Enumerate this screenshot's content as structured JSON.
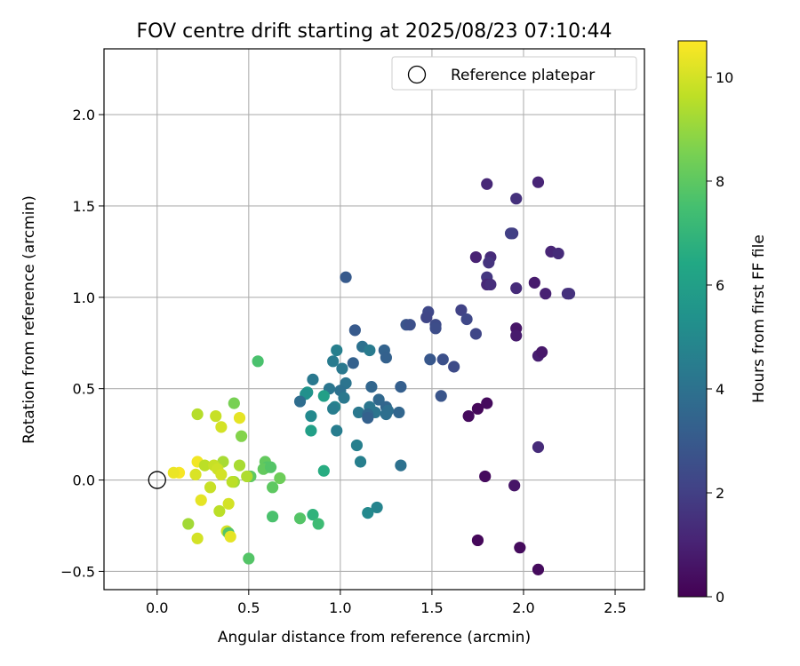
{
  "chart_data": {
    "type": "scatter",
    "title": "FOV centre drift starting at 2025/08/23 07:10:44",
    "xlabel": "Angular distance from reference (arcmin)",
    "ylabel": "Rotation from reference (arcmin)",
    "xlim": [
      -0.29,
      2.66
    ],
    "ylim": [
      -0.6,
      2.36
    ],
    "x_ticks": [
      0.0,
      0.5,
      1.0,
      1.5,
      2.0,
      2.5
    ],
    "x_tick_labels": [
      "0.0",
      "0.5",
      "1.0",
      "1.5",
      "2.0",
      "2.5"
    ],
    "y_ticks": [
      -0.5,
      0.0,
      0.5,
      1.0,
      1.5,
      2.0
    ],
    "y_tick_labels": [
      "−0.5",
      "0.0",
      "0.5",
      "1.0",
      "1.5",
      "2.0"
    ],
    "grid": true,
    "legend": {
      "position": "top-right",
      "entries": [
        "Reference platepar"
      ]
    },
    "reference_point": {
      "x": 0.0,
      "y": 0.0,
      "name": "Reference platepar"
    },
    "colorbar": {
      "label": "Hours from first FF file",
      "min": 0,
      "max": 10.7,
      "ticks": [
        0,
        2,
        4,
        6,
        8,
        10
      ],
      "tick_labels": [
        "0",
        "2",
        "4",
        "6",
        "8",
        "10"
      ],
      "colormap": "viridis"
    },
    "points": [
      {
        "x": 2.08,
        "y": 1.63,
        "c": 1.1
      },
      {
        "x": 1.8,
        "y": 1.62,
        "c": 1.2
      },
      {
        "x": 1.96,
        "y": 1.54,
        "c": 1.5
      },
      {
        "x": 1.94,
        "y": 1.35,
        "c": 1.9
      },
      {
        "x": 1.93,
        "y": 1.35,
        "c": 2.0
      },
      {
        "x": 2.15,
        "y": 1.25,
        "c": 1.1
      },
      {
        "x": 2.19,
        "y": 1.24,
        "c": 1.3
      },
      {
        "x": 1.74,
        "y": 1.22,
        "c": 1.0
      },
      {
        "x": 1.82,
        "y": 1.22,
        "c": 1.3
      },
      {
        "x": 1.81,
        "y": 1.19,
        "c": 1.6
      },
      {
        "x": 1.8,
        "y": 1.11,
        "c": 1.7
      },
      {
        "x": 1.8,
        "y": 1.07,
        "c": 1.2
      },
      {
        "x": 1.82,
        "y": 1.07,
        "c": 1.4
      },
      {
        "x": 1.96,
        "y": 1.05,
        "c": 1.3
      },
      {
        "x": 2.06,
        "y": 1.08,
        "c": 0.8
      },
      {
        "x": 2.12,
        "y": 1.02,
        "c": 1.0
      },
      {
        "x": 2.25,
        "y": 1.02,
        "c": 1.6
      },
      {
        "x": 2.24,
        "y": 1.02,
        "c": 1.5
      },
      {
        "x": 1.03,
        "y": 1.11,
        "c": 3.0
      },
      {
        "x": 1.48,
        "y": 0.92,
        "c": 2.3
      },
      {
        "x": 1.66,
        "y": 0.93,
        "c": 2.1
      },
      {
        "x": 1.47,
        "y": 0.89,
        "c": 2.2
      },
      {
        "x": 1.69,
        "y": 0.88,
        "c": 2.3
      },
      {
        "x": 1.36,
        "y": 0.85,
        "c": 2.8
      },
      {
        "x": 1.38,
        "y": 0.85,
        "c": 2.6
      },
      {
        "x": 1.52,
        "y": 0.85,
        "c": 2.4
      },
      {
        "x": 1.52,
        "y": 0.83,
        "c": 2.5
      },
      {
        "x": 1.08,
        "y": 0.82,
        "c": 3.0
      },
      {
        "x": 1.74,
        "y": 0.8,
        "c": 2.2
      },
      {
        "x": 1.96,
        "y": 0.83,
        "c": 0.6
      },
      {
        "x": 1.96,
        "y": 0.79,
        "c": 0.8
      },
      {
        "x": 2.08,
        "y": 0.68,
        "c": 0.9
      },
      {
        "x": 2.1,
        "y": 0.7,
        "c": 0.7
      },
      {
        "x": 1.12,
        "y": 0.73,
        "c": 4.0
      },
      {
        "x": 1.16,
        "y": 0.71,
        "c": 4.4
      },
      {
        "x": 1.24,
        "y": 0.71,
        "c": 3.4
      },
      {
        "x": 0.98,
        "y": 0.71,
        "c": 4.6
      },
      {
        "x": 1.25,
        "y": 0.67,
        "c": 3.3
      },
      {
        "x": 1.49,
        "y": 0.66,
        "c": 2.9
      },
      {
        "x": 1.56,
        "y": 0.66,
        "c": 2.6
      },
      {
        "x": 1.62,
        "y": 0.62,
        "c": 2.4
      },
      {
        "x": 1.07,
        "y": 0.64,
        "c": 3.3
      },
      {
        "x": 0.96,
        "y": 0.65,
        "c": 4.4
      },
      {
        "x": 1.01,
        "y": 0.61,
        "c": 4.3
      },
      {
        "x": 0.55,
        "y": 0.65,
        "c": 7.6
      },
      {
        "x": 0.85,
        "y": 0.55,
        "c": 4.3
      },
      {
        "x": 1.17,
        "y": 0.51,
        "c": 3.5
      },
      {
        "x": 1.33,
        "y": 0.51,
        "c": 3.2
      },
      {
        "x": 1.03,
        "y": 0.53,
        "c": 4.1
      },
      {
        "x": 0.94,
        "y": 0.5,
        "c": 4.2
      },
      {
        "x": 1.0,
        "y": 0.49,
        "c": 4.0
      },
      {
        "x": 0.82,
        "y": 0.48,
        "c": 5.6
      },
      {
        "x": 0.81,
        "y": 0.47,
        "c": 5.3
      },
      {
        "x": 0.91,
        "y": 0.46,
        "c": 6.0
      },
      {
        "x": 1.02,
        "y": 0.45,
        "c": 4.3
      },
      {
        "x": 1.21,
        "y": 0.44,
        "c": 3.6
      },
      {
        "x": 0.78,
        "y": 0.43,
        "c": 3.8
      },
      {
        "x": 1.55,
        "y": 0.46,
        "c": 2.8
      },
      {
        "x": 1.19,
        "y": 0.37,
        "c": 4.1
      },
      {
        "x": 1.25,
        "y": 0.4,
        "c": 3.5
      },
      {
        "x": 1.26,
        "y": 0.38,
        "c": 3.9
      },
      {
        "x": 1.1,
        "y": 0.37,
        "c": 4.3
      },
      {
        "x": 1.16,
        "y": 0.4,
        "c": 4.2
      },
      {
        "x": 1.15,
        "y": 0.36,
        "c": 3.6
      },
      {
        "x": 1.15,
        "y": 0.34,
        "c": 3.3
      },
      {
        "x": 1.25,
        "y": 0.36,
        "c": 3.9
      },
      {
        "x": 1.32,
        "y": 0.37,
        "c": 3.5
      },
      {
        "x": 0.84,
        "y": 0.35,
        "c": 5.0
      },
      {
        "x": 0.97,
        "y": 0.4,
        "c": 4.8
      },
      {
        "x": 0.96,
        "y": 0.39,
        "c": 4.5
      },
      {
        "x": 1.7,
        "y": 0.35,
        "c": 0.3
      },
      {
        "x": 1.75,
        "y": 0.39,
        "c": 0.2
      },
      {
        "x": 1.8,
        "y": 0.42,
        "c": 0.3
      },
      {
        "x": 0.42,
        "y": 0.42,
        "c": 8.5
      },
      {
        "x": 0.22,
        "y": 0.36,
        "c": 9.5
      },
      {
        "x": 0.32,
        "y": 0.35,
        "c": 9.8
      },
      {
        "x": 0.45,
        "y": 0.34,
        "c": 10.3
      },
      {
        "x": 0.35,
        "y": 0.29,
        "c": 10.0
      },
      {
        "x": 0.84,
        "y": 0.27,
        "c": 6.0
      },
      {
        "x": 0.98,
        "y": 0.27,
        "c": 4.5
      },
      {
        "x": 0.46,
        "y": 0.24,
        "c": 8.7
      },
      {
        "x": 1.09,
        "y": 0.19,
        "c": 4.6
      },
      {
        "x": 2.08,
        "y": 0.18,
        "c": 1.3
      },
      {
        "x": 1.11,
        "y": 0.1,
        "c": 4.6
      },
      {
        "x": 1.33,
        "y": 0.08,
        "c": 4.0
      },
      {
        "x": 0.59,
        "y": 0.1,
        "c": 8.1
      },
      {
        "x": 0.45,
        "y": 0.08,
        "c": 9.3
      },
      {
        "x": 0.6,
        "y": 0.07,
        "c": 7.8
      },
      {
        "x": 0.58,
        "y": 0.06,
        "c": 8.1
      },
      {
        "x": 0.62,
        "y": 0.07,
        "c": 7.8
      },
      {
        "x": 0.22,
        "y": 0.1,
        "c": 10.5
      },
      {
        "x": 0.36,
        "y": 0.1,
        "c": 9.3
      },
      {
        "x": 0.26,
        "y": 0.08,
        "c": 9.6
      },
      {
        "x": 0.31,
        "y": 0.08,
        "c": 9.8
      },
      {
        "x": 0.33,
        "y": 0.06,
        "c": 9.9
      },
      {
        "x": 0.12,
        "y": 0.04,
        "c": 10.6
      },
      {
        "x": 0.09,
        "y": 0.04,
        "c": 10.4
      },
      {
        "x": 0.91,
        "y": 0.05,
        "c": 6.6
      },
      {
        "x": 0.21,
        "y": 0.03,
        "c": 10.1
      },
      {
        "x": 0.35,
        "y": 0.03,
        "c": 10.0
      },
      {
        "x": 0.51,
        "y": 0.02,
        "c": 8.0
      },
      {
        "x": 0.49,
        "y": 0.02,
        "c": 9.4
      },
      {
        "x": 0.67,
        "y": 0.01,
        "c": 8.3
      },
      {
        "x": 0.42,
        "y": -0.01,
        "c": 9.1
      },
      {
        "x": 0.41,
        "y": -0.01,
        "c": 9.6
      },
      {
        "x": 1.79,
        "y": 0.02,
        "c": 0.3
      },
      {
        "x": 1.95,
        "y": -0.03,
        "c": 0.6
      },
      {
        "x": 0.29,
        "y": -0.04,
        "c": 9.8
      },
      {
        "x": 0.63,
        "y": -0.04,
        "c": 8.0
      },
      {
        "x": 0.24,
        "y": -0.11,
        "c": 10.3
      },
      {
        "x": 0.39,
        "y": -0.13,
        "c": 10.0
      },
      {
        "x": 1.2,
        "y": -0.15,
        "c": 4.8
      },
      {
        "x": 1.15,
        "y": -0.18,
        "c": 5.0
      },
      {
        "x": 0.34,
        "y": -0.17,
        "c": 9.6
      },
      {
        "x": 0.78,
        "y": -0.21,
        "c": 7.8
      },
      {
        "x": 0.63,
        "y": -0.2,
        "c": 7.6
      },
      {
        "x": 0.85,
        "y": -0.19,
        "c": 6.9
      },
      {
        "x": 0.88,
        "y": -0.24,
        "c": 7.3
      },
      {
        "x": 0.17,
        "y": -0.24,
        "c": 9.2
      },
      {
        "x": 0.38,
        "y": -0.28,
        "c": 10.0
      },
      {
        "x": 0.39,
        "y": -0.29,
        "c": 7.8
      },
      {
        "x": 0.4,
        "y": -0.31,
        "c": 10.3
      },
      {
        "x": 0.22,
        "y": -0.32,
        "c": 10.0
      },
      {
        "x": 1.75,
        "y": -0.33,
        "c": 0.2
      },
      {
        "x": 1.98,
        "y": -0.37,
        "c": 0.3
      },
      {
        "x": 0.5,
        "y": -0.43,
        "c": 7.8
      },
      {
        "x": 2.08,
        "y": -0.49,
        "c": 0.3
      }
    ]
  }
}
